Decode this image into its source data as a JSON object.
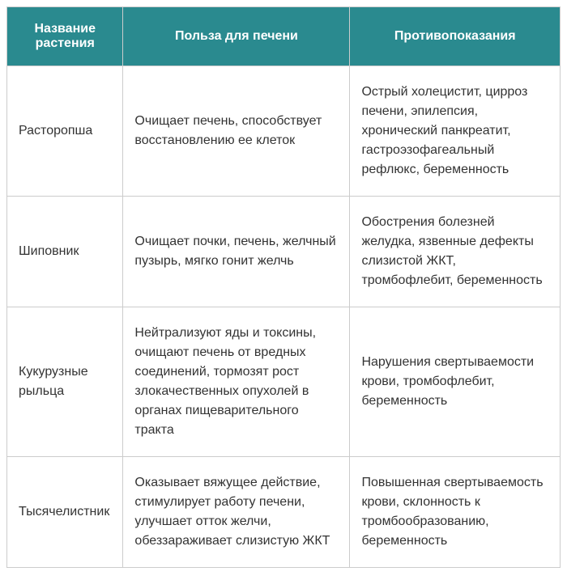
{
  "table": {
    "columns": [
      {
        "label": "Название растения",
        "class": "col-name"
      },
      {
        "label": "Польза для печени",
        "class": "col-benefit"
      },
      {
        "label": "Противопоказания",
        "class": "col-contra"
      }
    ],
    "rows": [
      {
        "name": "Расторопша",
        "benefit": "Очищает печень, способствует восстановлению ее клеток",
        "contra": "Острый холецистит, цирроз печени, эпилепсия, хронический панкреатит, гастроэзофагеальный рефлюкс, беременность"
      },
      {
        "name": "Шиповник",
        "benefit": "Очищает почки, печень, желчный пузырь, мягко гонит желчь",
        "contra": "Обострения болезней желудка, язвенные дефекты слизистой ЖКТ, тромбофлебит, беременность"
      },
      {
        "name": "Кукурузные рыльца",
        "benefit": "Нейтрализуют яды и токсины, очищают печень от вредных соединений, тормозят рост злокачественных опухолей в органах пищеварительного тракта",
        "contra": "Нарушения свертываемости крови, тромбофлебит, беременность"
      },
      {
        "name": "Тысячелистник",
        "benefit": "Оказывает вяжущее действие, стимулирует работу печени, улучшает отток желчи, обеззараживает слизистую ЖКТ",
        "contra": "Повышенная свертываемость крови, склонность к тромбообразованию, беременность"
      }
    ],
    "style": {
      "header_bg": "#2a8a8f",
      "header_text_color": "#ffffff",
      "cell_text_color": "#333333",
      "border_color": "#cccccc",
      "font_size_header": 16,
      "font_size_cell": 16
    }
  }
}
